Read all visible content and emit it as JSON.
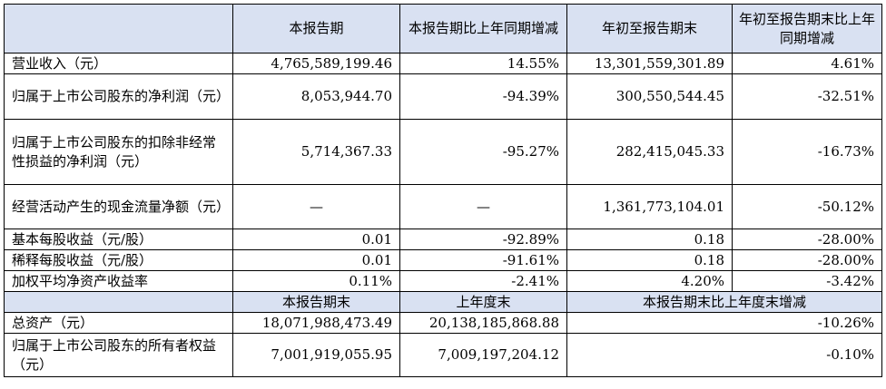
{
  "header1": {
    "c1": "本报告期",
    "c2": "本报告期比上年同期增减",
    "c3": "年初至报告期末",
    "c4": "年初至报告期末比上年同期增减"
  },
  "rows": [
    {
      "label": "营业收入（元）",
      "v1": "4,765,589,199.46",
      "v2": "14.55%",
      "v3": "13,301,559,301.89",
      "v4": "4.61%"
    },
    {
      "label": "归属于上市公司股东的净利润（元）",
      "v1": "8,053,944.70",
      "v2": "-94.39%",
      "v3": "300,550,544.45",
      "v4": "-32.51%"
    },
    {
      "label": "归属于上市公司股东的扣除非经常性损益的净利润（元）",
      "v1": "5,714,367.33",
      "v2": "-95.27%",
      "v3": "282,415,045.33",
      "v4": "-16.73%"
    },
    {
      "label": "经营活动产生的现金流量净额（元）",
      "v1": "—",
      "v2": "—",
      "v3": "1,361,773,104.01",
      "v4": "-50.12%"
    },
    {
      "label": "基本每股收益（元/股）",
      "v1": "0.01",
      "v2": "-92.89%",
      "v3": "0.18",
      "v4": "-28.00%"
    },
    {
      "label": "稀释每股收益（元/股）",
      "v1": "0.01",
      "v2": "-91.61%",
      "v3": "0.18",
      "v4": "-28.00%"
    },
    {
      "label": "加权平均净资产收益率",
      "v1": "0.11%",
      "v2": "-2.41%",
      "v3": "4.20%",
      "v4": "-3.42%"
    }
  ],
  "header2": {
    "c1": "本报告期末",
    "c2": "上年度末",
    "c3": "本报告期末比上年度末增减"
  },
  "rows2": [
    {
      "label": "总资产（元）",
      "v1": "18,071,988,473.49",
      "v2": "20,138,185,868.88",
      "v3": "-10.26%"
    },
    {
      "label": "归属于上市公司股东的所有者权益（元）",
      "v1": "7,001,919,055.95",
      "v2": "7,009,197,204.12",
      "v3": "-0.10%"
    }
  ]
}
